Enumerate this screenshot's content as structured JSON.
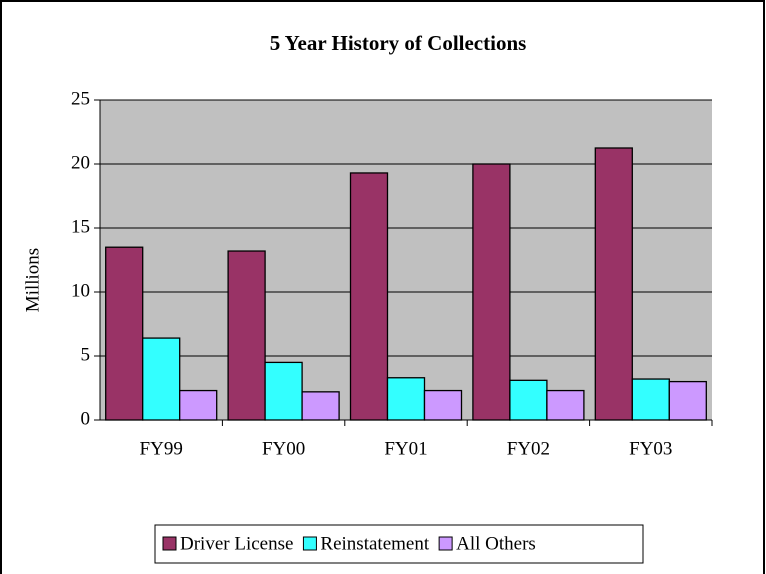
{
  "chart_data": {
    "type": "bar",
    "title": "5 Year History of Collections",
    "ylabel": "Millions",
    "categories": [
      "FY99",
      "FY00",
      "FY01",
      "FY02",
      "FY03"
    ],
    "series": [
      {
        "name": "Driver License",
        "color": "#993366",
        "values": [
          13.5,
          13.2,
          19.3,
          20.0,
          21.25
        ]
      },
      {
        "name": "Reinstatement",
        "color": "#33ffff",
        "values": [
          6.4,
          4.5,
          3.3,
          3.1,
          3.2
        ]
      },
      {
        "name": "All Others",
        "color": "#cc99ff",
        "values": [
          2.3,
          2.2,
          2.3,
          2.3,
          3.0
        ]
      }
    ],
    "ylim": [
      0,
      25
    ],
    "yticks": [
      0,
      5,
      10,
      15,
      20,
      25
    ],
    "grid": true,
    "legend": "bottom"
  }
}
